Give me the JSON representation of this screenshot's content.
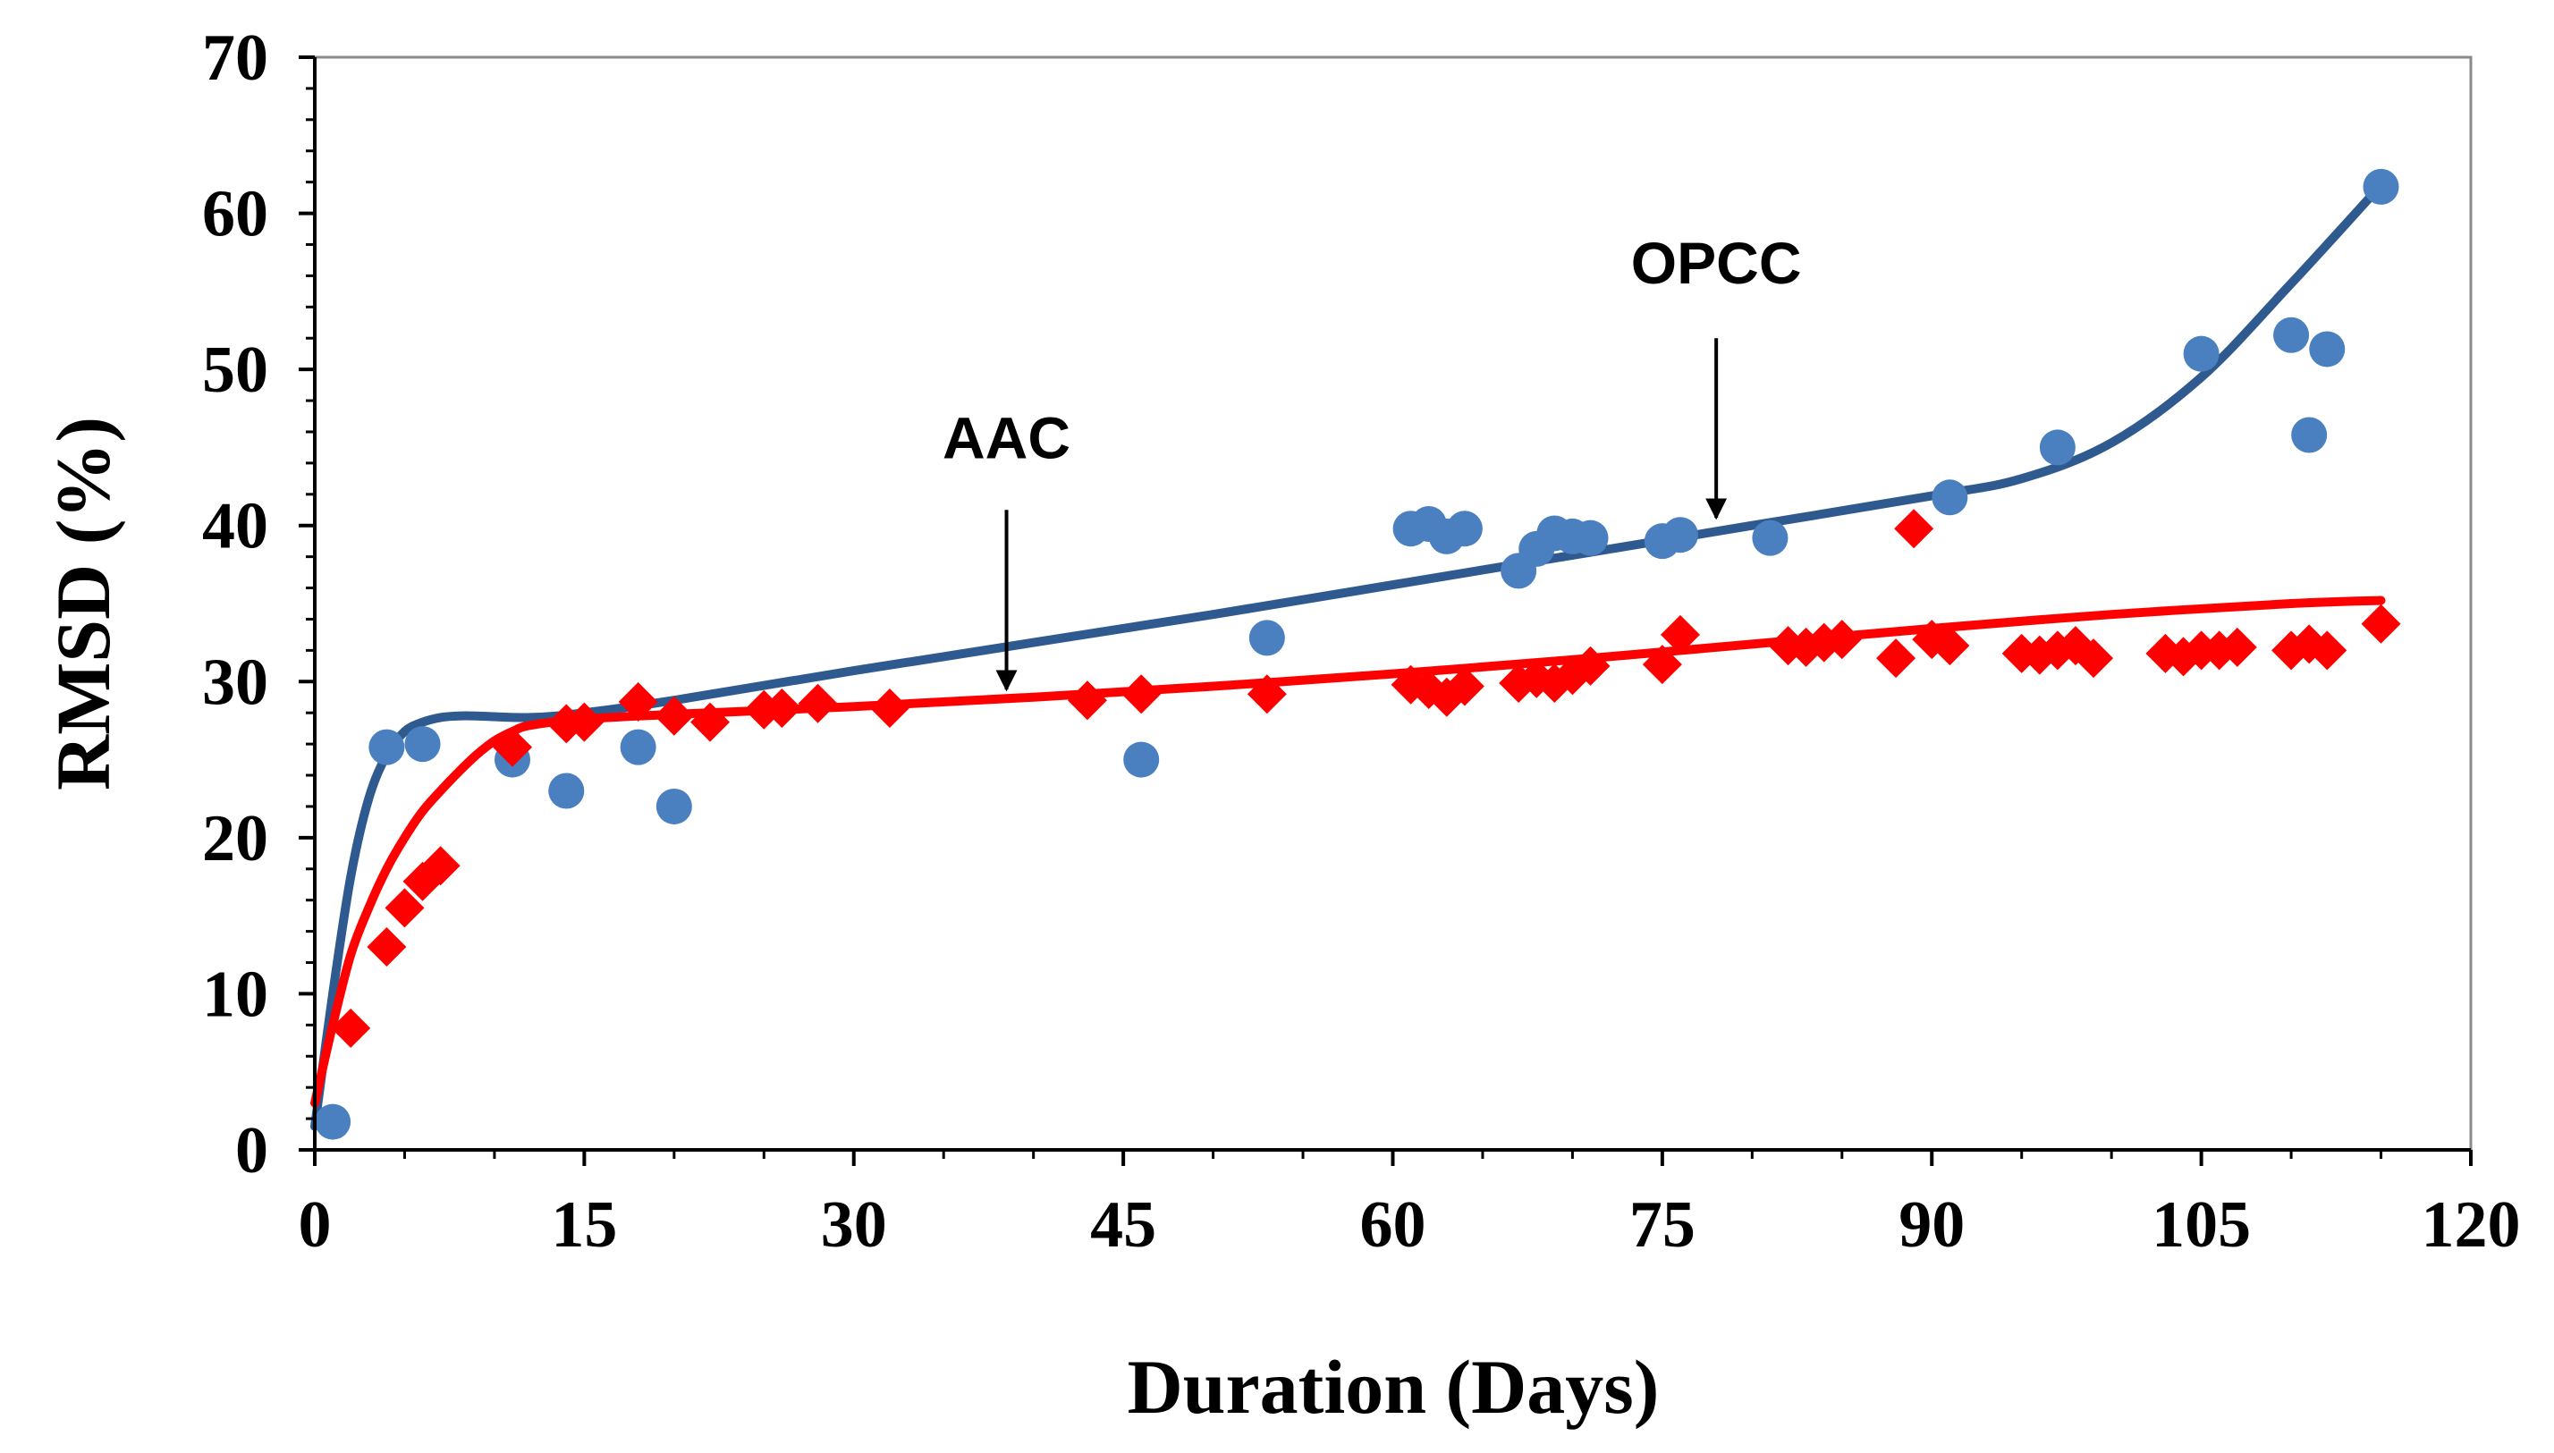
{
  "chart_data": {
    "type": "scatter",
    "title": "",
    "xlabel": "Duration (Days)",
    "ylabel": "RMSD (%)",
    "xlim": [
      0,
      120
    ],
    "ylim": [
      0,
      70
    ],
    "xticks": [
      0,
      15,
      30,
      45,
      60,
      75,
      90,
      105,
      120
    ],
    "yticks": [
      0,
      10,
      20,
      30,
      40,
      50,
      60,
      70
    ],
    "xtick_labels": [
      "0",
      "15",
      "30",
      "45",
      "60",
      "75",
      "90",
      "105",
      "120"
    ],
    "ytick_labels": [
      "0",
      "10",
      "20",
      "30",
      "40",
      "50",
      "60",
      "70"
    ],
    "grid": false,
    "series": [
      {
        "name": "OPCC",
        "color": "#4a7fc0",
        "line_color": "#2f5a8f",
        "marker": "circle",
        "points": [
          [
            1,
            1.8
          ],
          [
            4,
            25.8
          ],
          [
            6,
            26.0
          ],
          [
            11,
            25.0
          ],
          [
            14,
            23.0
          ],
          [
            18,
            25.8
          ],
          [
            20,
            22.0
          ],
          [
            46,
            25.0
          ],
          [
            53,
            32.8
          ],
          [
            61,
            39.8
          ],
          [
            62,
            40.1
          ],
          [
            63,
            39.3
          ],
          [
            64,
            39.8
          ],
          [
            67,
            37.1
          ],
          [
            68,
            38.5
          ],
          [
            69,
            39.5
          ],
          [
            70,
            39.3
          ],
          [
            71,
            39.2
          ],
          [
            75,
            39.0
          ],
          [
            76,
            39.4
          ],
          [
            81,
            39.2
          ],
          [
            91,
            41.8
          ],
          [
            97,
            45.0
          ],
          [
            105,
            51.0
          ],
          [
            110,
            52.2
          ],
          [
            111,
            45.8
          ],
          [
            112,
            51.3
          ],
          [
            115,
            61.7
          ]
        ],
        "trend": [
          [
            0,
            1.5
          ],
          [
            1,
            10
          ],
          [
            2,
            17.5
          ],
          [
            3,
            22.5
          ],
          [
            4,
            25.3
          ],
          [
            5,
            26.8
          ],
          [
            6,
            27.4
          ],
          [
            7,
            27.7
          ],
          [
            8,
            27.8
          ],
          [
            9,
            27.8
          ],
          [
            12,
            27.7
          ],
          [
            15,
            28.0
          ],
          [
            20,
            28.8
          ],
          [
            30,
            30.7
          ],
          [
            40,
            32.5
          ],
          [
            50,
            34.3
          ],
          [
            60,
            36.2
          ],
          [
            70,
            38.1
          ],
          [
            80,
            40.0
          ],
          [
            90,
            41.9
          ],
          [
            95,
            43.0
          ],
          [
            100,
            45.3
          ],
          [
            105,
            49.5
          ],
          [
            110,
            55.5
          ],
          [
            115,
            61.8
          ]
        ]
      },
      {
        "name": "AAC",
        "color": "#ff0000",
        "line_color": "#ff0000",
        "marker": "diamond",
        "points": [
          [
            2,
            7.8
          ],
          [
            4,
            13.0
          ],
          [
            5,
            15.5
          ],
          [
            6,
            17.2
          ],
          [
            7,
            18.2
          ],
          [
            11,
            25.8
          ],
          [
            14,
            27.3
          ],
          [
            15,
            27.4
          ],
          [
            18,
            28.7
          ],
          [
            20,
            27.8
          ],
          [
            22,
            27.4
          ],
          [
            25,
            28.2
          ],
          [
            26,
            28.3
          ],
          [
            28,
            28.6
          ],
          [
            32,
            28.3
          ],
          [
            43,
            28.8
          ],
          [
            46,
            29.2
          ],
          [
            53,
            29.2
          ],
          [
            61,
            29.8
          ],
          [
            62,
            29.5
          ],
          [
            63,
            29.0
          ],
          [
            64,
            29.7
          ],
          [
            67,
            29.9
          ],
          [
            68,
            30.2
          ],
          [
            69,
            29.9
          ],
          [
            70,
            30.4
          ],
          [
            71,
            31.0
          ],
          [
            75,
            31.1
          ],
          [
            76,
            33.0
          ],
          [
            82,
            32.3
          ],
          [
            83,
            32.2
          ],
          [
            84,
            32.5
          ],
          [
            85,
            32.7
          ],
          [
            88,
            31.5
          ],
          [
            89,
            39.8
          ],
          [
            90,
            32.7
          ],
          [
            91,
            32.3
          ],
          [
            95,
            31.8
          ],
          [
            96,
            31.7
          ],
          [
            97,
            32.0
          ],
          [
            98,
            32.3
          ],
          [
            99,
            31.5
          ],
          [
            103,
            31.8
          ],
          [
            104,
            31.6
          ],
          [
            105,
            32.0
          ],
          [
            106,
            32.0
          ],
          [
            107,
            32.2
          ],
          [
            110,
            32.0
          ],
          [
            111,
            32.4
          ],
          [
            112,
            32.0
          ],
          [
            115,
            33.7
          ]
        ],
        "trend": [
          [
            0,
            3.0
          ],
          [
            1,
            8.0
          ],
          [
            2,
            12.5
          ],
          [
            3,
            15.5
          ],
          [
            4,
            18.0
          ],
          [
            5,
            20.0
          ],
          [
            6,
            21.7
          ],
          [
            7,
            23.0
          ],
          [
            8,
            24.2
          ],
          [
            9,
            25.3
          ],
          [
            10,
            26.2
          ],
          [
            11,
            26.8
          ],
          [
            12,
            27.2
          ],
          [
            15,
            27.6
          ],
          [
            20,
            27.9
          ],
          [
            30,
            28.4
          ],
          [
            40,
            29.0
          ],
          [
            50,
            29.7
          ],
          [
            60,
            30.5
          ],
          [
            70,
            31.4
          ],
          [
            80,
            32.4
          ],
          [
            90,
            33.4
          ],
          [
            100,
            34.3
          ],
          [
            110,
            35.0
          ],
          [
            115,
            35.2
          ]
        ]
      }
    ],
    "annotations": [
      {
        "label": "OPCC",
        "text_at": [
          78,
          55.5
        ],
        "arrow_from": [
          78,
          52.0
        ],
        "arrow_to": [
          78,
          40.5
        ]
      },
      {
        "label": "AAC",
        "text_at": [
          38.5,
          44.3
        ],
        "arrow_from": [
          38.5,
          41.0
        ],
        "arrow_to": [
          38.5,
          29.5
        ]
      }
    ]
  }
}
